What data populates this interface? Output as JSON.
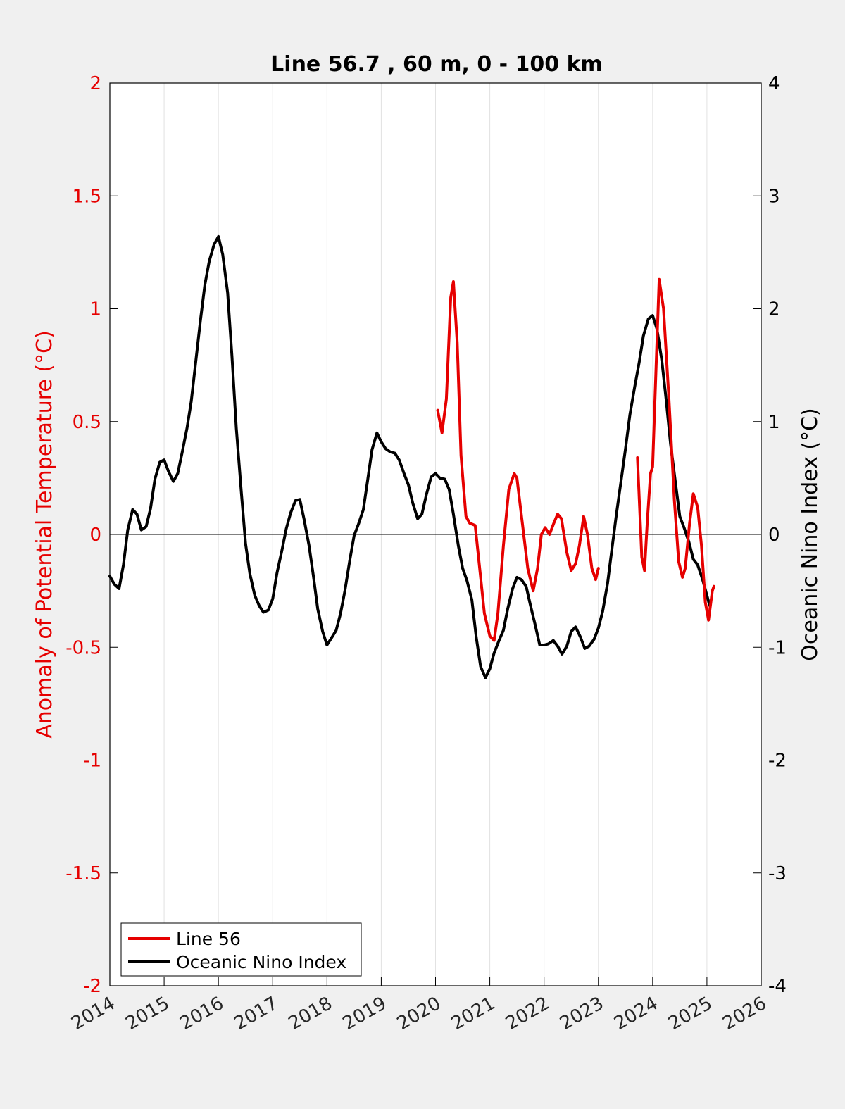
{
  "chart_data": {
    "type": "line",
    "title": "Line 56.7 , 60 m, 0 - 100 km",
    "xlabel": "",
    "ylabel_left": "Anomaly of Potential Temperature (°C)",
    "ylabel_right": "Oceanic Nino Index (°C)",
    "xlim": [
      2014,
      2026
    ],
    "ylim_left": [
      -2,
      2
    ],
    "ylim_right": [
      -4,
      4
    ],
    "x_ticks": [
      "2014",
      "2015",
      "2016",
      "2017",
      "2018",
      "2019",
      "2020",
      "2021",
      "2022",
      "2023",
      "2024",
      "2025",
      "2026"
    ],
    "y_ticks_left": [
      "2",
      "1.5",
      "1",
      "0.5",
      "0",
      "-0.5",
      "-1",
      "-1.5",
      "-2"
    ],
    "y_ticks_right": [
      "4",
      "3",
      "2",
      "1",
      "0",
      "-1",
      "-2",
      "-3",
      "-4"
    ],
    "grid": "vertical",
    "zero_line": 0,
    "legend_position": "bottom-left",
    "colors": {
      "left_axis": "#e60000",
      "right_axis": "#000000",
      "line56": "#e60000",
      "oni": "#000000"
    },
    "series": [
      {
        "name": "Line 56",
        "axis": "left",
        "color": "#e60000",
        "segments": [
          [
            [
              2020.04,
              0.55
            ],
            [
              2020.12,
              0.45
            ],
            [
              2020.2,
              0.6
            ],
            [
              2020.28,
              1.05
            ],
            [
              2020.33,
              1.12
            ],
            [
              2020.4,
              0.85
            ],
            [
              2020.47,
              0.35
            ],
            [
              2020.56,
              0.08
            ],
            [
              2020.63,
              0.05
            ],
            [
              2020.73,
              0.04
            ],
            [
              2020.8,
              -0.12
            ],
            [
              2020.9,
              -0.35
            ],
            [
              2021.0,
              -0.45
            ],
            [
              2021.08,
              -0.47
            ],
            [
              2021.15,
              -0.35
            ],
            [
              2021.25,
              -0.05
            ],
            [
              2021.35,
              0.2
            ],
            [
              2021.45,
              0.27
            ],
            [
              2021.5,
              0.25
            ],
            [
              2021.6,
              0.05
            ],
            [
              2021.7,
              -0.15
            ],
            [
              2021.8,
              -0.25
            ],
            [
              2021.88,
              -0.15
            ],
            [
              2021.95,
              0.0
            ],
            [
              2022.02,
              0.03
            ],
            [
              2022.1,
              0.0
            ],
            [
              2022.18,
              0.05
            ],
            [
              2022.25,
              0.09
            ],
            [
              2022.32,
              0.07
            ],
            [
              2022.42,
              -0.08
            ],
            [
              2022.5,
              -0.16
            ],
            [
              2022.58,
              -0.13
            ],
            [
              2022.65,
              -0.05
            ],
            [
              2022.73,
              0.08
            ],
            [
              2022.8,
              0.0
            ],
            [
              2022.88,
              -0.15
            ],
            [
              2022.95,
              -0.2
            ],
            [
              2023.0,
              -0.15
            ]
          ],
          [
            [
              2023.72,
              0.34
            ],
            [
              2023.8,
              -0.1
            ],
            [
              2023.85,
              -0.16
            ],
            [
              2023.9,
              0.05
            ],
            [
              2023.96,
              0.27
            ],
            [
              2024.0,
              0.3
            ],
            [
              2024.05,
              0.65
            ],
            [
              2024.12,
              1.13
            ],
            [
              2024.2,
              1.0
            ],
            [
              2024.3,
              0.6
            ],
            [
              2024.4,
              0.15
            ],
            [
              2024.48,
              -0.12
            ],
            [
              2024.55,
              -0.19
            ],
            [
              2024.6,
              -0.15
            ],
            [
              2024.68,
              0.05
            ],
            [
              2024.75,
              0.18
            ],
            [
              2024.83,
              0.12
            ],
            [
              2024.9,
              -0.05
            ],
            [
              2024.97,
              -0.3
            ],
            [
              2025.03,
              -0.38
            ],
            [
              2025.1,
              -0.25
            ],
            [
              2025.13,
              -0.23
            ]
          ]
        ]
      },
      {
        "name": "Oceanic Nino Index",
        "axis": "right",
        "color": "#000000",
        "segments": [
          [
            [
              2014.0,
              -0.37
            ],
            [
              2014.08,
              -0.44
            ],
            [
              2014.17,
              -0.48
            ],
            [
              2014.25,
              -0.27
            ],
            [
              2014.33,
              0.04
            ],
            [
              2014.42,
              0.22
            ],
            [
              2014.5,
              0.18
            ],
            [
              2014.58,
              0.04
            ],
            [
              2014.67,
              0.07
            ],
            [
              2014.75,
              0.23
            ],
            [
              2014.83,
              0.49
            ],
            [
              2014.92,
              0.64
            ],
            [
              2015.0,
              0.66
            ],
            [
              2015.08,
              0.56
            ],
            [
              2015.17,
              0.47
            ],
            [
              2015.25,
              0.54
            ],
            [
              2015.33,
              0.72
            ],
            [
              2015.42,
              0.94
            ],
            [
              2015.5,
              1.18
            ],
            [
              2015.58,
              1.52
            ],
            [
              2015.67,
              1.9
            ],
            [
              2015.75,
              2.21
            ],
            [
              2015.83,
              2.42
            ],
            [
              2015.92,
              2.57
            ],
            [
              2016.0,
              2.64
            ],
            [
              2016.08,
              2.48
            ],
            [
              2016.17,
              2.14
            ],
            [
              2016.25,
              1.58
            ],
            [
              2016.33,
              0.94
            ],
            [
              2016.42,
              0.39
            ],
            [
              2016.5,
              -0.08
            ],
            [
              2016.58,
              -0.35
            ],
            [
              2016.67,
              -0.54
            ],
            [
              2016.75,
              -0.63
            ],
            [
              2016.83,
              -0.69
            ],
            [
              2016.92,
              -0.67
            ],
            [
              2017.0,
              -0.57
            ],
            [
              2017.08,
              -0.34
            ],
            [
              2017.17,
              -0.14
            ],
            [
              2017.25,
              0.05
            ],
            [
              2017.33,
              0.19
            ],
            [
              2017.42,
              0.3
            ],
            [
              2017.5,
              0.31
            ],
            [
              2017.58,
              0.13
            ],
            [
              2017.67,
              -0.1
            ],
            [
              2017.75,
              -0.37
            ],
            [
              2017.83,
              -0.66
            ],
            [
              2017.92,
              -0.86
            ],
            [
              2018.0,
              -0.98
            ],
            [
              2018.08,
              -0.92
            ],
            [
              2018.17,
              -0.85
            ],
            [
              2018.25,
              -0.7
            ],
            [
              2018.33,
              -0.5
            ],
            [
              2018.42,
              -0.23
            ],
            [
              2018.5,
              -0.01
            ],
            [
              2018.58,
              0.09
            ],
            [
              2018.67,
              0.22
            ],
            [
              2018.75,
              0.48
            ],
            [
              2018.83,
              0.75
            ],
            [
              2018.92,
              0.9
            ],
            [
              2019.0,
              0.82
            ],
            [
              2019.08,
              0.76
            ],
            [
              2019.17,
              0.73
            ],
            [
              2019.25,
              0.72
            ],
            [
              2019.33,
              0.66
            ],
            [
              2019.42,
              0.54
            ],
            [
              2019.5,
              0.44
            ],
            [
              2019.58,
              0.28
            ],
            [
              2019.67,
              0.14
            ],
            [
              2019.75,
              0.18
            ],
            [
              2019.83,
              0.35
            ],
            [
              2019.92,
              0.51
            ],
            [
              2020.0,
              0.54
            ],
            [
              2020.08,
              0.5
            ],
            [
              2020.17,
              0.49
            ],
            [
              2020.25,
              0.4
            ],
            [
              2020.33,
              0.18
            ],
            [
              2020.42,
              -0.1
            ],
            [
              2020.5,
              -0.3
            ],
            [
              2020.58,
              -0.41
            ],
            [
              2020.67,
              -0.58
            ],
            [
              2020.75,
              -0.91
            ],
            [
              2020.83,
              -1.17
            ],
            [
              2020.92,
              -1.27
            ],
            [
              2021.0,
              -1.19
            ],
            [
              2021.08,
              -1.05
            ],
            [
              2021.17,
              -0.94
            ],
            [
              2021.25,
              -0.85
            ],
            [
              2021.33,
              -0.66
            ],
            [
              2021.42,
              -0.48
            ],
            [
              2021.5,
              -0.38
            ],
            [
              2021.58,
              -0.4
            ],
            [
              2021.67,
              -0.46
            ],
            [
              2021.75,
              -0.63
            ],
            [
              2021.83,
              -0.79
            ],
            [
              2021.92,
              -0.98
            ],
            [
              2022.0,
              -0.98
            ],
            [
              2022.08,
              -0.97
            ],
            [
              2022.17,
              -0.94
            ],
            [
              2022.25,
              -0.99
            ],
            [
              2022.33,
              -1.06
            ],
            [
              2022.42,
              -0.99
            ],
            [
              2022.5,
              -0.86
            ],
            [
              2022.58,
              -0.82
            ],
            [
              2022.67,
              -0.91
            ],
            [
              2022.75,
              -1.01
            ],
            [
              2022.83,
              -0.99
            ],
            [
              2022.92,
              -0.93
            ],
            [
              2023.0,
              -0.83
            ],
            [
              2023.08,
              -0.68
            ],
            [
              2023.17,
              -0.43
            ],
            [
              2023.25,
              -0.13
            ],
            [
              2023.33,
              0.17
            ],
            [
              2023.42,
              0.48
            ],
            [
              2023.5,
              0.76
            ],
            [
              2023.58,
              1.06
            ],
            [
              2023.67,
              1.31
            ],
            [
              2023.75,
              1.52
            ],
            [
              2023.83,
              1.76
            ],
            [
              2023.92,
              1.91
            ],
            [
              2024.0,
              1.94
            ],
            [
              2024.08,
              1.82
            ],
            [
              2024.17,
              1.54
            ],
            [
              2024.25,
              1.19
            ],
            [
              2024.33,
              0.8
            ],
            [
              2024.42,
              0.46
            ],
            [
              2024.5,
              0.16
            ],
            [
              2024.58,
              0.06
            ],
            [
              2024.67,
              -0.07
            ],
            [
              2024.75,
              -0.22
            ],
            [
              2024.83,
              -0.27
            ],
            [
              2024.92,
              -0.4
            ],
            [
              2025.0,
              -0.54
            ],
            [
              2025.05,
              -0.63
            ]
          ]
        ]
      }
    ]
  },
  "legend": {
    "line56_label": "Line 56",
    "oni_label": "Oceanic Nino Index"
  }
}
